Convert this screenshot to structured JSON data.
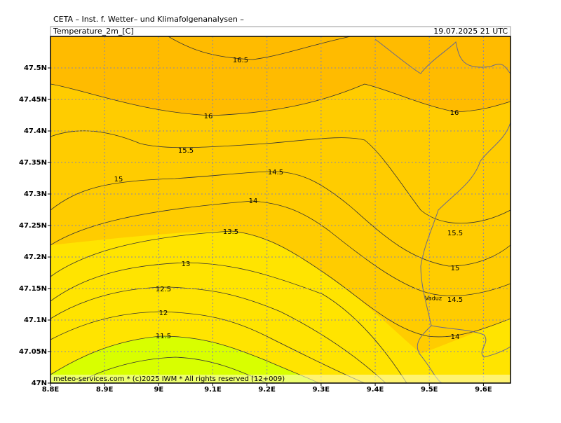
{
  "chart_data": {
    "type": "contour-map",
    "header": "CETA – Inst. f. Wetter– und Klimafolgenanalysen –",
    "title": "Temperature_2m_[C]",
    "valid_time": "19.07.2025 21 UTC",
    "footer": "meteo-services.com * (c)2025 IWM * All rights reserved (12+009)",
    "place_label": "Vaduz",
    "contour_labels": [
      "16.5",
      "16",
      "15.5",
      "15",
      "14.5",
      "14",
      "13.5",
      "13",
      "12.5",
      "12",
      "11.5",
      "16",
      "15.5",
      "15",
      "14.5",
      "14"
    ],
    "xlim": [
      8.8,
      9.65
    ],
    "ylim": [
      47,
      47.55
    ],
    "xticks": [
      {
        "value": 8.8,
        "label": "8.8E"
      },
      {
        "value": 8.9,
        "label": "8.9E"
      },
      {
        "value": 9,
        "label": "9E"
      },
      {
        "value": 9.1,
        "label": "9.1E"
      },
      {
        "value": 9.2,
        "label": "9.2E"
      },
      {
        "value": 9.3,
        "label": "9.3E"
      },
      {
        "value": 9.4,
        "label": "9.4E"
      },
      {
        "value": 9.5,
        "label": "9.5E"
      },
      {
        "value": 9.6,
        "label": "9.6E"
      }
    ],
    "yticks": [
      {
        "value": 47,
        "label": "47N"
      },
      {
        "value": 47.05,
        "label": "47.05N"
      },
      {
        "value": 47.1,
        "label": "47.1N"
      },
      {
        "value": 47.15,
        "label": "47.15N"
      },
      {
        "value": 47.2,
        "label": "47.2N"
      },
      {
        "value": 47.25,
        "label": "47.25N"
      },
      {
        "value": 47.3,
        "label": "47.3N"
      },
      {
        "value": 47.35,
        "label": "47.35N"
      },
      {
        "value": 47.4,
        "label": "47.4N"
      },
      {
        "value": 47.45,
        "label": "47.45N"
      },
      {
        "value": 47.5,
        "label": "47.5N"
      }
    ],
    "grid": true
  }
}
